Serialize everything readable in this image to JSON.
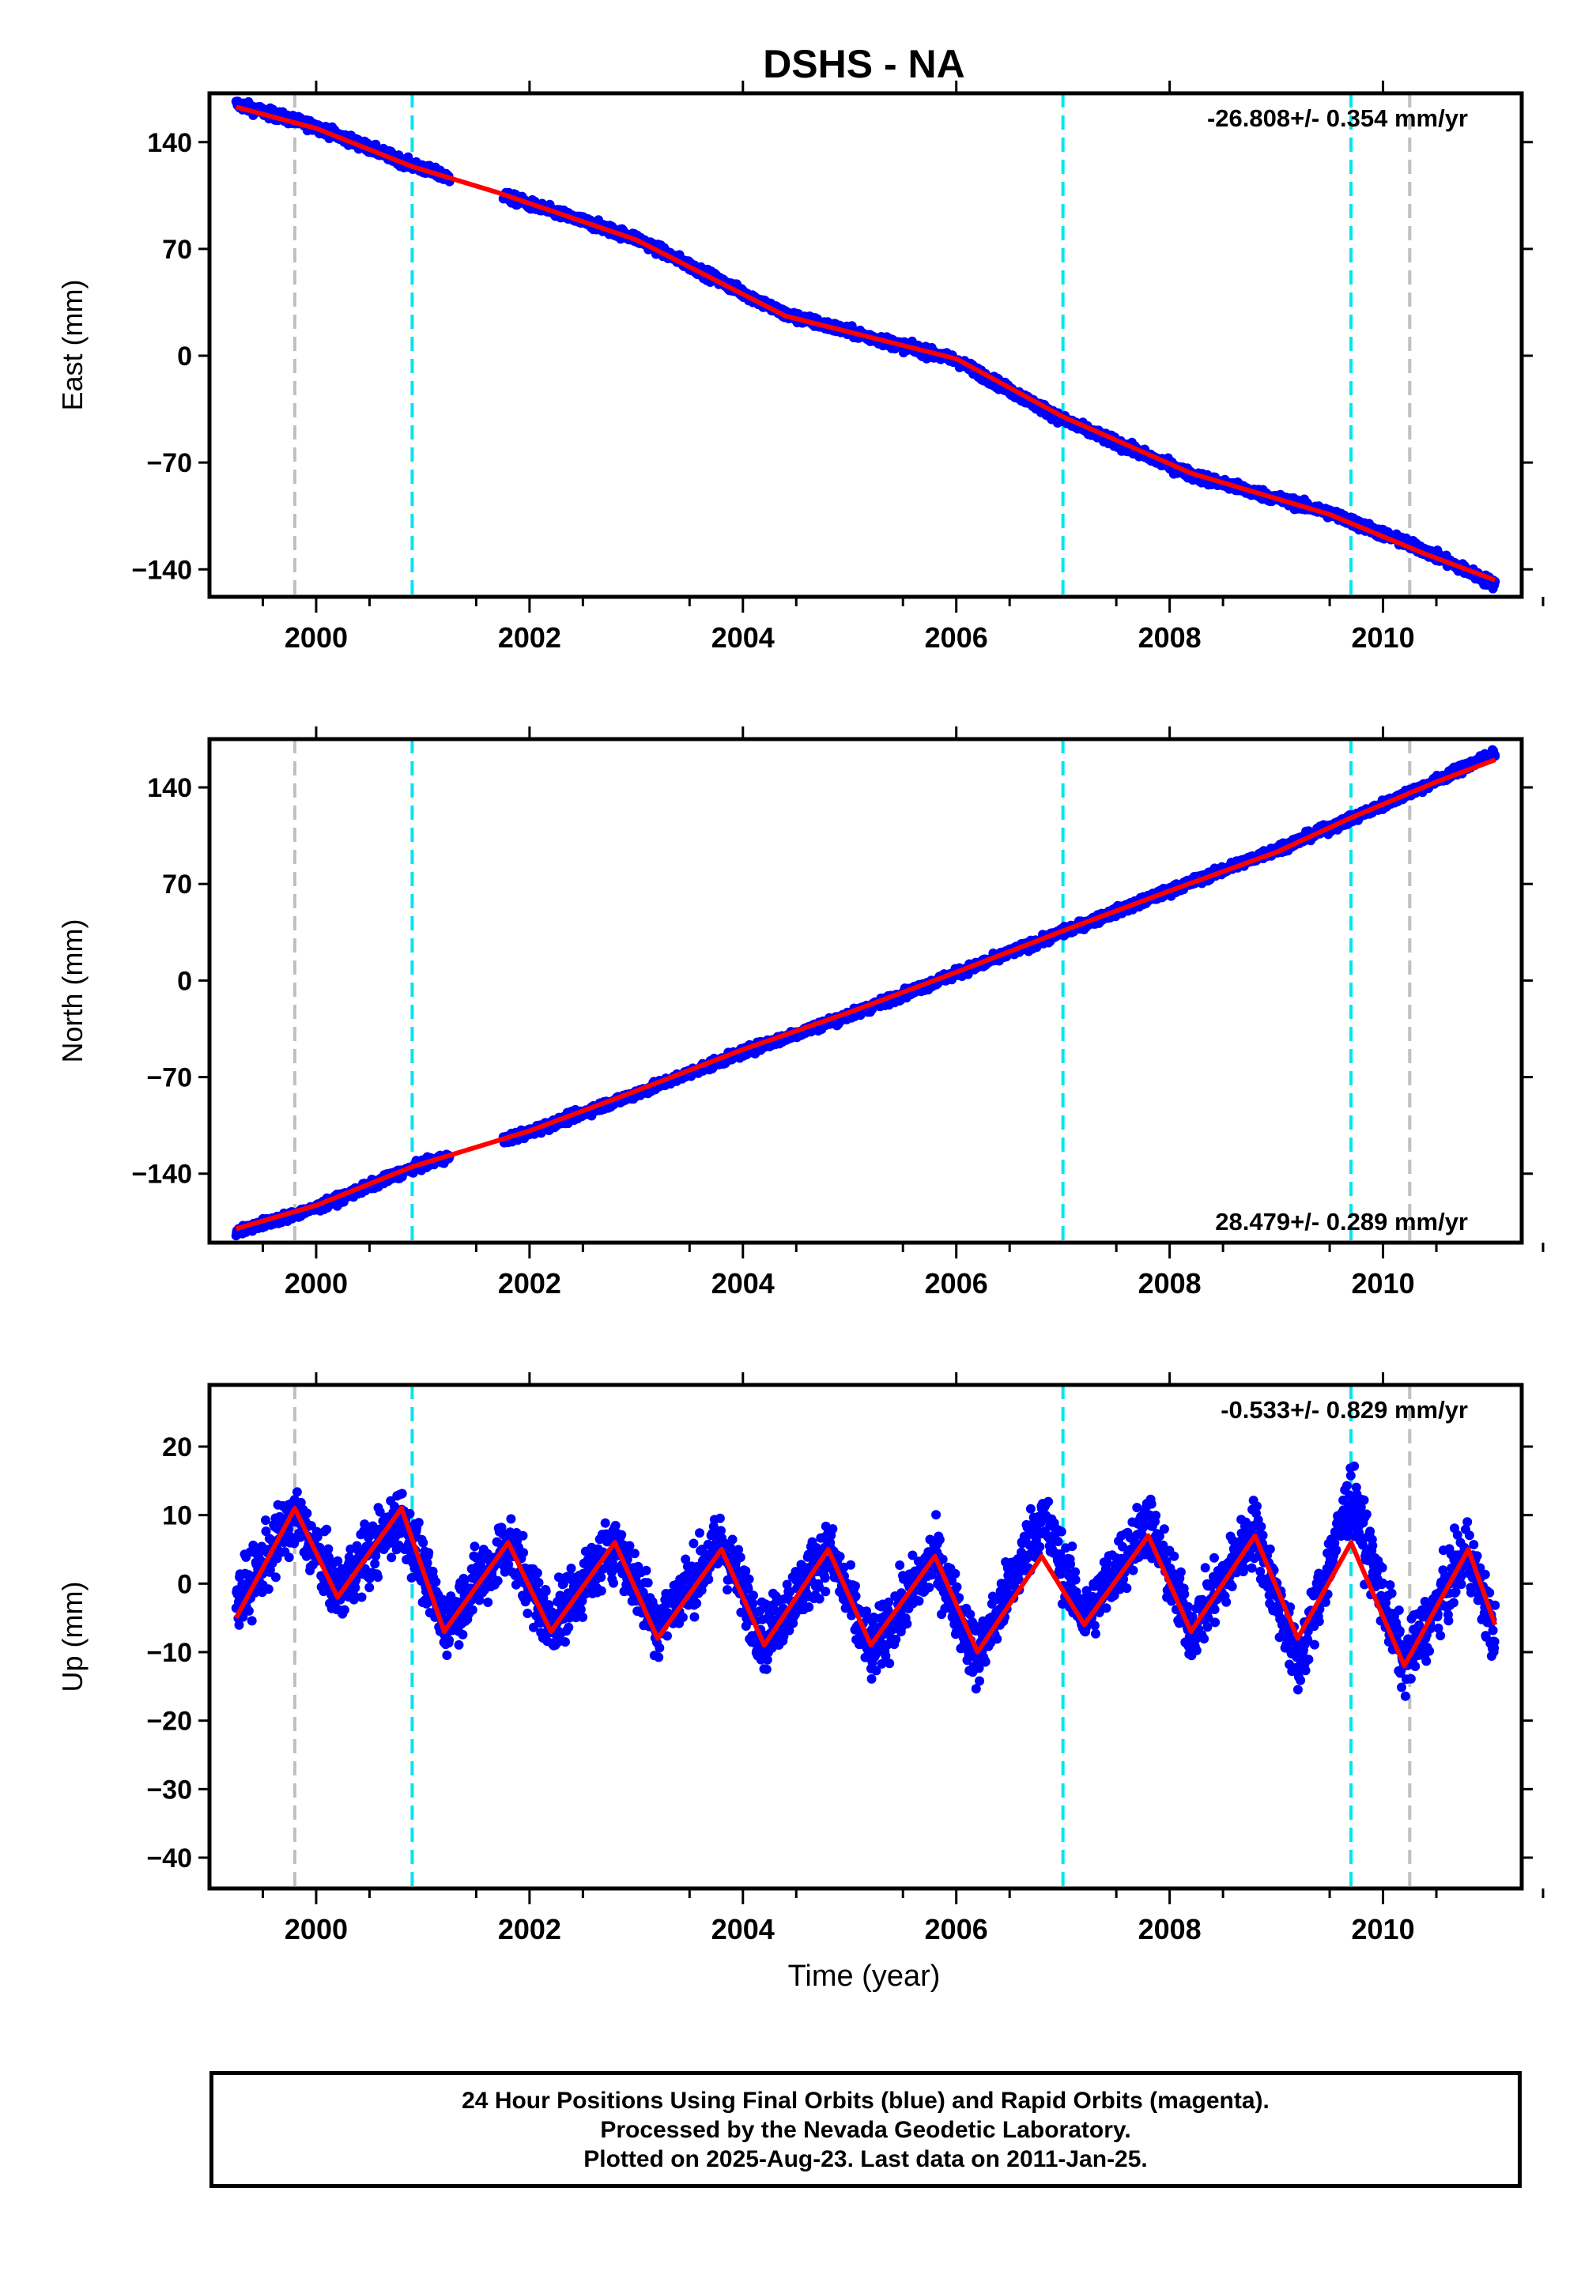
{
  "title": "DSHS - NA",
  "x_axis_label": "Time (year)",
  "x_ticks": [
    "2000",
    "2002",
    "2004",
    "2006",
    "2008",
    "2010"
  ],
  "footer": {
    "line1": "24 Hour Positions Using Final Orbits (blue) and Rapid Orbits (magenta).",
    "line2": "Processed by the Nevada Geodetic Laboratory.",
    "line3": "Plotted on 2025-Aug-23. Last data on 2011-Jan-25."
  },
  "colors": {
    "daily_positions": "#0000ff",
    "fit_line": "#ff0000",
    "equipment_change_lines": "#00e5ee",
    "gray_event_lines": "#c0c0c0"
  },
  "event_lines": {
    "cyan_years": [
      2000.9,
      2007.0,
      2009.7
    ],
    "gray_years": [
      1999.8,
      2010.25
    ]
  },
  "chart_data": [
    {
      "type": "scatter",
      "component": "East",
      "ylabel": "East (mm)",
      "rate_label": "-26.808+/- 0.354 mm/yr",
      "x_range": [
        1999.0,
        2011.3
      ],
      "ylim": [
        -158,
        172
      ],
      "y_ticks": [
        "140",
        "70",
        "0",
        "−70",
        "−140"
      ],
      "y_tick_values": [
        140,
        70,
        0,
        -70,
        -140
      ],
      "series": [
        {
          "name": "Final Orbits",
          "x": [
            1999.25,
            2000.0,
            2000.9,
            2001.7,
            2003.0,
            2004.4,
            2006.0,
            2007.0,
            2008.2,
            2009.5,
            2010.4,
            2011.05
          ],
          "y": [
            165,
            150,
            125,
            106,
            77,
            27,
            -3,
            -42,
            -78,
            -103,
            -128,
            -150
          ]
        },
        {
          "name": "Fit",
          "x": [
            1999.25,
            2000.0,
            2000.9,
            2001.7,
            2003.0,
            2004.4,
            2006.0,
            2007.0,
            2008.2,
            2009.5,
            2010.4,
            2011.05
          ],
          "y": [
            163,
            149,
            124,
            107,
            76,
            26,
            -2,
            -40,
            -77,
            -104,
            -130,
            -147
          ]
        }
      ],
      "grid": false
    },
    {
      "type": "scatter",
      "component": "North",
      "ylabel": "North (mm)",
      "rate_label": "28.479+/- 0.289 mm/yr",
      "x_range": [
        1999.0,
        2011.3
      ],
      "ylim": [
        -190,
        175
      ],
      "y_ticks": [
        "140",
        "70",
        "0",
        "−70",
        "−140"
      ],
      "y_tick_values": [
        140,
        70,
        0,
        -70,
        -140
      ],
      "series": [
        {
          "name": "Final Orbits",
          "x": [
            1999.25,
            2000.0,
            2000.9,
            2002.0,
            2003.0,
            2004.0,
            2005.0,
            2006.0,
            2007.0,
            2008.0,
            2009.0,
            2009.7,
            2010.5,
            2011.05
          ],
          "y": [
            -182,
            -165,
            -136,
            -110,
            -82,
            -52,
            -25,
            5,
            35,
            65,
            95,
            117,
            145,
            165
          ]
        },
        {
          "name": "Fit",
          "x": [
            1999.25,
            2000.0,
            2000.9,
            2002.0,
            2003.0,
            2004.0,
            2005.0,
            2006.0,
            2007.0,
            2008.0,
            2009.0,
            2009.7,
            2010.5,
            2011.05
          ],
          "y": [
            -180,
            -163,
            -135,
            -109,
            -80,
            -50,
            -23,
            6,
            36,
            65,
            93,
            118,
            144,
            160
          ]
        }
      ],
      "grid": false
    },
    {
      "type": "scatter",
      "component": "Up",
      "ylabel": "Up (mm)",
      "rate_label": "-0.533+/- 0.829 mm/yr",
      "x_range": [
        1999.0,
        2011.3
      ],
      "ylim": [
        -44.5,
        29
      ],
      "y_ticks": [
        "20",
        "10",
        "0",
        "−10",
        "−20",
        "−30",
        "−40"
      ],
      "y_tick_values": [
        20,
        10,
        0,
        -10,
        -20,
        -30,
        -40
      ],
      "series": [
        {
          "name": "Final Orbits",
          "x": [
            1999.25,
            1999.8,
            2000.2,
            2000.8,
            2001.2,
            2001.8,
            2002.2,
            2002.8,
            2003.2,
            2003.8,
            2004.2,
            2004.8,
            2005.2,
            2005.8,
            2006.2,
            2006.8,
            2007.2,
            2007.8,
            2008.2,
            2008.8,
            2009.2,
            2009.7,
            2010.2,
            2010.8,
            2011.05
          ],
          "y": [
            -3,
            10,
            -1,
            10,
            -6,
            6,
            -6,
            6,
            -6,
            6,
            -8,
            5,
            -10,
            4,
            -11,
            10,
            -5,
            9,
            -7,
            8,
            -12,
            13,
            -12,
            5,
            -8
          ]
        },
        {
          "name": "Fit",
          "x": [
            1999.25,
            1999.8,
            2000.2,
            2000.8,
            2001.2,
            2001.8,
            2002.2,
            2002.8,
            2003.2,
            2003.8,
            2004.2,
            2004.8,
            2005.2,
            2005.8,
            2006.2,
            2006.8,
            2007.2,
            2007.8,
            2008.2,
            2008.8,
            2009.2,
            2009.7,
            2010.2,
            2010.8,
            2011.05
          ],
          "y": [
            -5,
            11,
            -2,
            11,
            -7,
            6,
            -7,
            6,
            -8,
            5,
            -9,
            5,
            -9,
            4,
            -10,
            4,
            -6,
            7,
            -7,
            7,
            -8,
            6,
            -12,
            5,
            -6
          ]
        }
      ],
      "grid": false
    }
  ]
}
